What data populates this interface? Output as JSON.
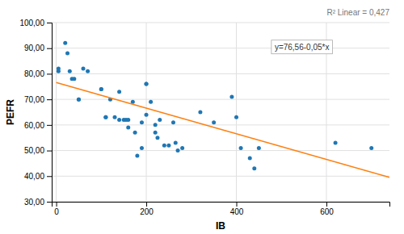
{
  "chart_data": {
    "type": "scatter",
    "series": [
      {
        "type": "scatter",
        "x": [
          5,
          5,
          20,
          25,
          30,
          35,
          40,
          50,
          50,
          60,
          70,
          100,
          100,
          110,
          110,
          120,
          130,
          140,
          140,
          150,
          155,
          160,
          160,
          170,
          175,
          180,
          190,
          190,
          200,
          200,
          200,
          210,
          220,
          220,
          225,
          230,
          240,
          250,
          260,
          265,
          270,
          280,
          320,
          350,
          390,
          400,
          410,
          430,
          440,
          450,
          620,
          700
        ],
        "values": [
          82,
          81,
          92,
          88,
          81,
          78,
          78,
          70,
          70,
          82,
          81,
          74,
          74,
          63,
          63,
          70,
          63,
          73,
          62,
          62,
          62,
          62,
          59,
          69,
          57,
          48,
          61,
          51,
          76,
          76,
          64,
          69,
          60,
          57,
          55,
          62,
          52,
          52,
          61,
          53,
          50,
          51,
          65,
          61,
          71,
          63,
          51,
          47,
          43,
          51,
          53,
          51
        ]
      },
      {
        "type": "line",
        "x": [
          0,
          740
        ],
        "values": [
          76.56,
          39.56
        ]
      }
    ],
    "x_label": "IB",
    "y_label": "PEFR",
    "annotations": [
      "R² Linear = 0,427",
      "y=76,56-0,05*x"
    ],
    "xlim": [
      -10,
      740
    ],
    "ylim": [
      30,
      100
    ],
    "xticks": [
      0,
      200,
      400,
      600
    ],
    "yticks": [
      {
        "value": 30,
        "label": "30,00"
      },
      {
        "value": 40,
        "label": "40,00"
      },
      {
        "value": 50,
        "label": "50,00"
      },
      {
        "value": 60,
        "label": "60,00"
      },
      {
        "value": 70,
        "label": "70,00"
      },
      {
        "value": 80,
        "label": "80,00"
      },
      {
        "value": 90,
        "label": "90,00"
      },
      {
        "value": 100,
        "label": "100,00"
      }
    ],
    "grid": true
  }
}
